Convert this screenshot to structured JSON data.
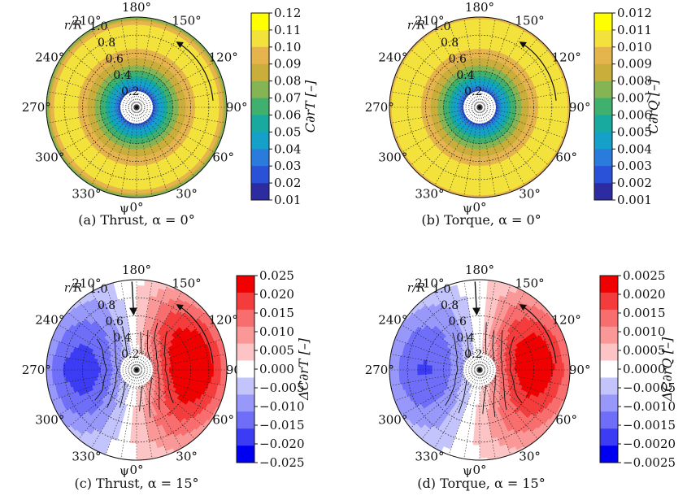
{
  "chart_data": [
    {
      "type": "heatmap",
      "subtype": "polar-contour",
      "caption": "(a) Thrust, α = 0°",
      "colorbar_label": "C∂rT [–]",
      "colorbar_ticks": [
        "0.12",
        "0.11",
        "0.10",
        "0.09",
        "0.08",
        "0.07",
        "0.06",
        "0.05",
        "0.04",
        "0.03",
        "0.02",
        "0.01"
      ],
      "colorbar_colors": [
        "#ffff00",
        "#f3e23c",
        "#e6b44c",
        "#c9ae3c",
        "#84b454",
        "#3fb06e",
        "#18aa9e",
        "#14a0c8",
        "#2a7cdc",
        "#2a52d8",
        "#2c2ca0"
      ],
      "scale": "sequential",
      "radial_ticks": [
        "0.2",
        "0.4",
        "0.6",
        "0.8",
        "1.0"
      ],
      "radial_axis_label": "r/R",
      "azimuth_ticks": [
        "0°",
        "30°",
        "60°",
        "90°",
        "120°",
        "150°",
        "180°",
        "210°",
        "240°",
        "270°",
        "300°",
        "330°"
      ],
      "azimuth_axis_label": "ψ",
      "rotation_arrow": true,
      "freestream_arrow": false,
      "radial_profile": [
        {
          "r": 0.2,
          "value": 0.03
        },
        {
          "r": 0.3,
          "value": 0.05
        },
        {
          "r": 0.4,
          "value": 0.07
        },
        {
          "r": 0.5,
          "value": 0.085
        },
        {
          "r": 0.6,
          "value": 0.095
        },
        {
          "r": 0.7,
          "value": 0.105
        },
        {
          "r": 0.8,
          "value": 0.11
        },
        {
          "r": 0.9,
          "value": 0.105
        },
        {
          "r": 0.96,
          "value": 0.09
        },
        {
          "r": 1.0,
          "value": 0.07
        }
      ]
    },
    {
      "type": "heatmap",
      "subtype": "polar-contour",
      "caption": "(b) Torque, α = 0°",
      "colorbar_label": "C∂rQ [–]",
      "colorbar_ticks": [
        "0.012",
        "0.011",
        "0.010",
        "0.009",
        "0.008",
        "0.007",
        "0.006",
        "0.005",
        "0.004",
        "0.003",
        "0.002",
        "0.001"
      ],
      "colorbar_colors": [
        "#ffff00",
        "#f3e23c",
        "#e6b44c",
        "#c9ae3c",
        "#84b454",
        "#3fb06e",
        "#18aa9e",
        "#14a0c8",
        "#2a7cdc",
        "#2a52d8",
        "#2c2ca0"
      ],
      "scale": "sequential",
      "radial_ticks": [
        "0.2",
        "0.4",
        "0.6",
        "0.8",
        "1.0"
      ],
      "radial_axis_label": "r/R",
      "azimuth_ticks": [
        "0°",
        "30°",
        "60°",
        "90°",
        "120°",
        "150°",
        "180°",
        "210°",
        "240°",
        "270°",
        "300°",
        "330°"
      ],
      "azimuth_axis_label": "ψ",
      "rotation_arrow": true,
      "freestream_arrow": false,
      "radial_profile": [
        {
          "r": 0.2,
          "value": 0.003
        },
        {
          "r": 0.3,
          "value": 0.005
        },
        {
          "r": 0.4,
          "value": 0.007
        },
        {
          "r": 0.5,
          "value": 0.0085
        },
        {
          "r": 0.6,
          "value": 0.0095
        },
        {
          "r": 0.7,
          "value": 0.0105
        },
        {
          "r": 0.8,
          "value": 0.011
        },
        {
          "r": 0.9,
          "value": 0.0108
        },
        {
          "r": 0.96,
          "value": 0.0105
        },
        {
          "r": 1.0,
          "value": 0.0095
        }
      ]
    },
    {
      "type": "heatmap",
      "subtype": "polar-contour",
      "caption": "(c) Thrust, α = 15°",
      "colorbar_label": "ΔC∂rT [–]",
      "colorbar_ticks": [
        "0.025",
        "0.020",
        "0.015",
        "0.010",
        "0.005",
        "0.000",
        "−0.005",
        "−0.010",
        "−0.015",
        "−0.020",
        "−0.025"
      ],
      "colorbar_colors": [
        "#f00000",
        "#f53c3c",
        "#f86e6e",
        "#fa9898",
        "#fcc4c4",
        "#ffffff",
        "#c4c4fc",
        "#9898fa",
        "#6e6ef8",
        "#3c3cf5",
        "#0000f0"
      ],
      "scale": "diverging",
      "radial_ticks": [
        "0.2",
        "0.4",
        "0.6",
        "0.8",
        "1.0"
      ],
      "radial_axis_label": "r/R",
      "azimuth_ticks": [
        "0°",
        "30°",
        "60°",
        "90°",
        "120°",
        "150°",
        "180°",
        "210°",
        "240°",
        "270°",
        "300°",
        "330°"
      ],
      "azimuth_axis_label": "ψ",
      "rotation_arrow": true,
      "freestream_arrow": true,
      "azimuthal_profile": [
        {
          "psi": 0,
          "value": 0.003
        },
        {
          "psi": 30,
          "value": 0.012
        },
        {
          "psi": 60,
          "value": 0.018
        },
        {
          "psi": 90,
          "value": 0.022
        },
        {
          "psi": 120,
          "value": 0.02
        },
        {
          "psi": 150,
          "value": 0.014
        },
        {
          "psi": 180,
          "value": 0.002
        },
        {
          "psi": 210,
          "value": -0.008
        },
        {
          "psi": 240,
          "value": -0.013
        },
        {
          "psi": 270,
          "value": -0.016
        },
        {
          "psi": 300,
          "value": -0.013
        },
        {
          "psi": 330,
          "value": -0.006
        }
      ],
      "contour_levels": [
        0.005,
        0.01,
        0.015,
        0.02,
        -0.005,
        -0.01,
        -0.015
      ]
    },
    {
      "type": "heatmap",
      "subtype": "polar-contour",
      "caption": "(d) Torque, α = 15°",
      "colorbar_label": "ΔC∂rQ [–]",
      "colorbar_ticks": [
        "0.0025",
        "0.0020",
        "0.0015",
        "0.0010",
        "0.0005",
        "0.0000",
        "−0.0005",
        "−0.0010",
        "−0.0015",
        "−0.0020",
        "−0.0025"
      ],
      "colorbar_colors": [
        "#f00000",
        "#f53c3c",
        "#f86e6e",
        "#fa9898",
        "#fcc4c4",
        "#ffffff",
        "#c4c4fc",
        "#9898fa",
        "#6e6ef8",
        "#3c3cf5",
        "#0000f0"
      ],
      "scale": "diverging",
      "radial_ticks": [
        "0.2",
        "0.4",
        "0.6",
        "0.8",
        "1.0"
      ],
      "radial_axis_label": "r/R",
      "azimuth_ticks": [
        "0°",
        "30°",
        "60°",
        "90°",
        "120°",
        "150°",
        "180°",
        "210°",
        "240°",
        "270°",
        "300°",
        "330°"
      ],
      "azimuth_axis_label": "ψ",
      "rotation_arrow": true,
      "freestream_arrow": true,
      "azimuthal_profile": [
        {
          "psi": 0,
          "value": 0.0003
        },
        {
          "psi": 30,
          "value": 0.0011
        },
        {
          "psi": 60,
          "value": 0.0017
        },
        {
          "psi": 90,
          "value": 0.0021
        },
        {
          "psi": 120,
          "value": 0.0019
        },
        {
          "psi": 150,
          "value": 0.0012
        },
        {
          "psi": 180,
          "value": 0.0001
        },
        {
          "psi": 210,
          "value": -0.0007
        },
        {
          "psi": 240,
          "value": -0.0012
        },
        {
          "psi": 270,
          "value": -0.0014
        },
        {
          "psi": 300,
          "value": -0.0011
        },
        {
          "psi": 330,
          "value": -0.0005
        }
      ],
      "contour_levels": [
        0.0005,
        0.001,
        0.0015,
        0.002,
        -0.0005,
        -0.001
      ]
    }
  ]
}
